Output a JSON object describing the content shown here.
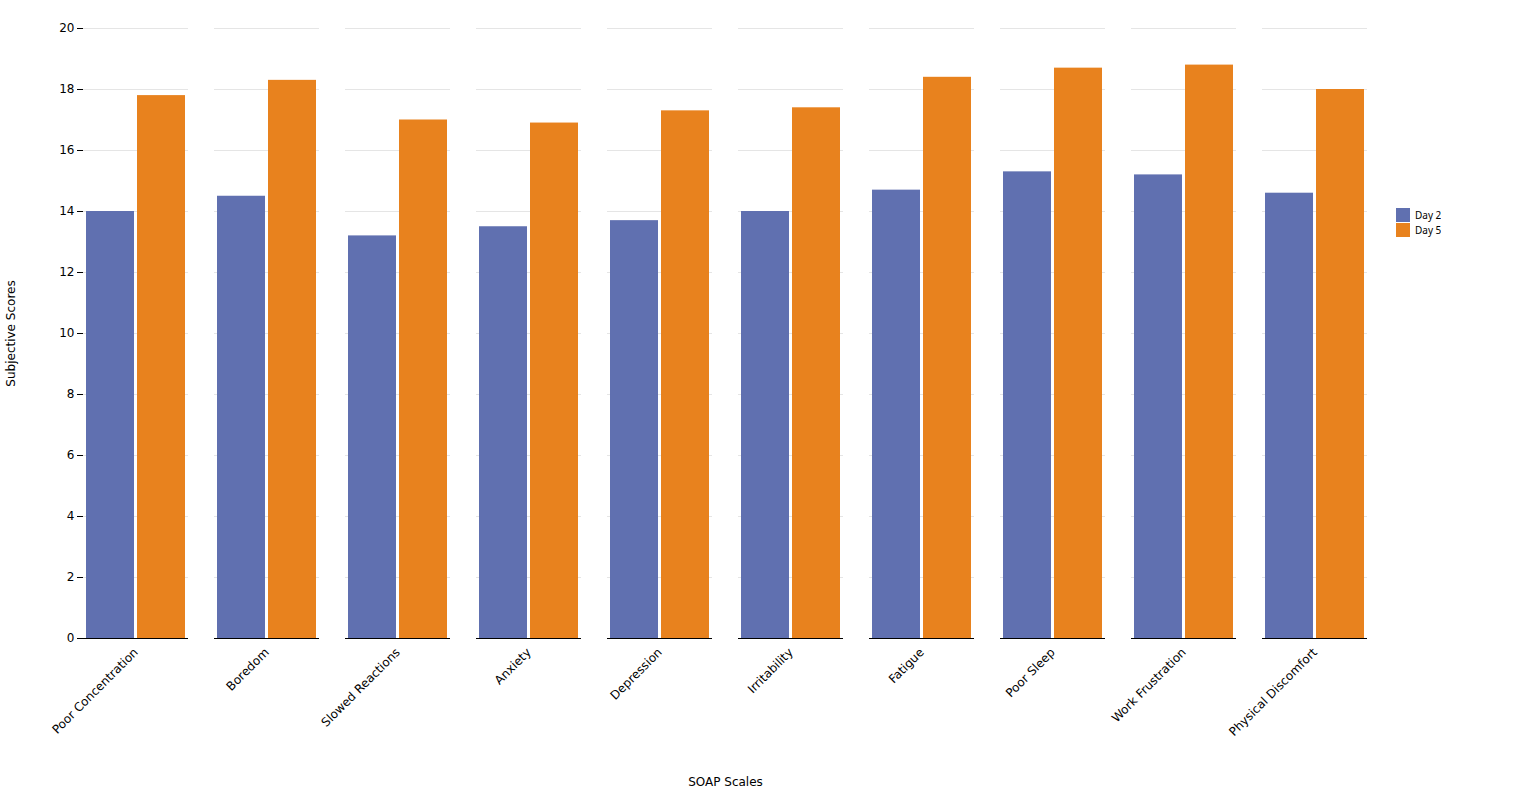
{
  "chart_data": {
    "type": "bar",
    "categories": [
      "Poor Concentration",
      "Boredom",
      "Slowed Reactions",
      "Anxiety",
      "Depression",
      "Irritability",
      "Fatigue",
      "Poor Sleep",
      "Work Frustration",
      "Physical Discomfort"
    ],
    "series": [
      {
        "name": "Day 2",
        "color": "#6070b0",
        "values": [
          14.0,
          14.5,
          13.2,
          13.5,
          13.7,
          14.0,
          14.7,
          15.3,
          15.2,
          14.6
        ]
      },
      {
        "name": "Day 5",
        "color": "#e8821e",
        "values": [
          17.8,
          18.3,
          17.0,
          16.9,
          17.3,
          17.4,
          18.4,
          18.7,
          18.8,
          18.0
        ]
      }
    ],
    "xlabel": "SOAP Scales",
    "ylabel": "Subjective Scores",
    "ylim": [
      0,
      20
    ],
    "yticks": [
      0,
      2,
      4,
      6,
      8,
      10,
      12,
      14,
      16,
      18,
      20
    ],
    "grid": true,
    "legend": "right"
  }
}
